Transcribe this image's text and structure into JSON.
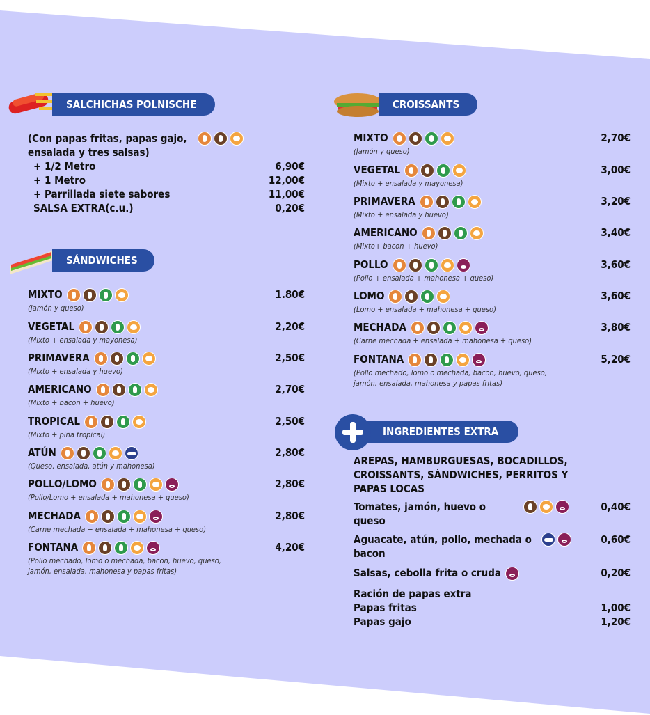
{
  "salchichas": {
    "title": "SALCHICHAS POLNISCHE",
    "description": "(Con papas fritas, papas gajo, ensalada y tres salsas)",
    "items": [
      {
        "name": "+ 1/2 Metro",
        "price": "6,90€"
      },
      {
        "name": "+ 1 Metro",
        "price": "12,00€"
      },
      {
        "name": "+ Parrillada siete sabores",
        "price": "11,00€"
      },
      {
        "name": "SALSA EXTRA(c.u.)",
        "price": "0,20€"
      }
    ]
  },
  "sandwiches": {
    "title": "SÁNDWICHES",
    "items": [
      {
        "name": "MIXTO",
        "description": "(Jamón y queso)",
        "price": "1.80€"
      },
      {
        "name": "VEGETAL",
        "description": "(Mixto + ensalada y mayonesa)",
        "price": "2,20€"
      },
      {
        "name": "PRIMAVERA",
        "description": "(Mixto + ensalada y huevo)",
        "price": "2,50€"
      },
      {
        "name": "AMERICANO",
        "description": "(Mixto + bacon + huevo)",
        "price": "2,70€"
      },
      {
        "name": "TROPICAL",
        "description": "(Mixto + piña tropical)",
        "price": "2,50€"
      },
      {
        "name": "ATÚN",
        "description": "(Queso, ensalada, atún y mahonesa)",
        "price": "2,80€"
      },
      {
        "name": "POLLO/LOMO",
        "description": "(Pollo/Lomo + ensalada + mahonesa + queso)",
        "price": "2,80€"
      },
      {
        "name": "MECHADA",
        "description": "(Carne mechada + ensalada + mahonesa + queso)",
        "price": "2,80€"
      },
      {
        "name": "FONTANA",
        "description": "(Pollo mechado, lomo o mechada, bacon, huevo, queso, jamón, ensalada, mahonesa y papas fritas)",
        "price": "4,20€"
      }
    ]
  },
  "croissants": {
    "title": "CROISSANTS",
    "items": [
      {
        "name": "MIXTO",
        "description": "(Jamón y queso)",
        "price": "2,70€"
      },
      {
        "name": "VEGETAL",
        "description": "(Mixto + ensalada y mayonesa)",
        "price": "3,00€"
      },
      {
        "name": "PRIMAVERA",
        "description": "(Mixto + ensalada y huevo)",
        "price": "3,20€"
      },
      {
        "name": "AMERICANO",
        "description": "(Mixto+ bacon + huevo)",
        "price": "3,40€"
      },
      {
        "name": "POLLO",
        "description": "(Pollo + ensalada + mahonesa + queso)",
        "price": "3,60€"
      },
      {
        "name": "LOMO",
        "description": "(Lomo + ensalada + mahonesa + queso)",
        "price": "3,60€"
      },
      {
        "name": "MECHADA",
        "description": "(Carne mechada + ensalada + mahonesa + queso)",
        "price": "3,80€"
      },
      {
        "name": "FONTANA",
        "description": "(Pollo mechado, lomo o mechada, bacon, huevo, queso, jamón, ensalada, mahonesa y papas fritas)",
        "price": "5,20€"
      }
    ]
  },
  "extra": {
    "title": "INGREDIENTES EXTRA",
    "heading": "AREPAS, HAMBURGUESAS, BOCADILLOS, CROISSANTS, SÁNDWICHES, PERRITOS Y PAPAS LOCAS",
    "items": [
      {
        "name": "Tomates, jamón, huevo o queso",
        "price": "0,40€"
      },
      {
        "name": "Aguacate, atún, pollo, mechada o bacon",
        "price": "0,60€"
      },
      {
        "name": "Salsas, cebolla frita o cruda",
        "price": "0,20€"
      }
    ],
    "racion": {
      "title": "Ración de papas extra",
      "items": [
        {
          "name": "Papas fritas",
          "price": "1,00€"
        },
        {
          "name": "Papas gajo",
          "price": "1,20€"
        }
      ]
    }
  }
}
